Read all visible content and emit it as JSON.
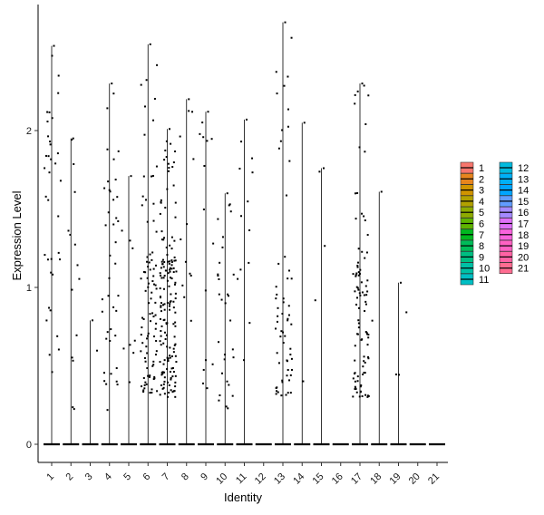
{
  "chart_data": {
    "type": "violin",
    "title": "",
    "xlabel": "Identity",
    "ylabel": "Expression Level",
    "ylim": [
      -0.12,
      2.82
    ],
    "yticks": [
      0,
      1,
      2
    ],
    "grid": false,
    "legend_placement": "right",
    "categories": [
      "1",
      "2",
      "3",
      "4",
      "5",
      "6",
      "7",
      "8",
      "9",
      "10",
      "11",
      "12",
      "13",
      "14",
      "15",
      "16",
      "17",
      "18",
      "19",
      "20",
      "21"
    ],
    "max_values": [
      2.54,
      1.95,
      0.79,
      2.3,
      1.71,
      2.55,
      2.01,
      2.2,
      2.12,
      1.6,
      2.07,
      0.0,
      2.69,
      2.05,
      1.76,
      0.0,
      2.3,
      1.61,
      1.03,
      0.0,
      0.0
    ],
    "legend": [
      {
        "label": "1",
        "color": "#F8766D"
      },
      {
        "label": "2",
        "color": "#E7851E"
      },
      {
        "label": "3",
        "color": "#D09400"
      },
      {
        "label": "4",
        "color": "#B2A100"
      },
      {
        "label": "5",
        "color": "#8EAB00"
      },
      {
        "label": "6",
        "color": "#5EB300"
      },
      {
        "label": "7",
        "color": "#00B81F"
      },
      {
        "label": "8",
        "color": "#00BC59"
      },
      {
        "label": "9",
        "color": "#00BE82"
      },
      {
        "label": "10",
        "color": "#00C0A5"
      },
      {
        "label": "11",
        "color": "#00BFC4"
      },
      {
        "label": "12",
        "color": "#00BADE"
      },
      {
        "label": "13",
        "color": "#00B0F6"
      },
      {
        "label": "14",
        "color": "#00A5FF"
      },
      {
        "label": "15",
        "color": "#619CFF"
      },
      {
        "label": "16",
        "color": "#A58AFF"
      },
      {
        "label": "17",
        "color": "#DF70F8"
      },
      {
        "label": "18",
        "color": "#F962DD"
      },
      {
        "label": "19",
        "color": "#FF61C3"
      },
      {
        "label": "20",
        "color": "#FF62A4"
      },
      {
        "label": "21",
        "color": "#FF6C91"
      }
    ]
  }
}
